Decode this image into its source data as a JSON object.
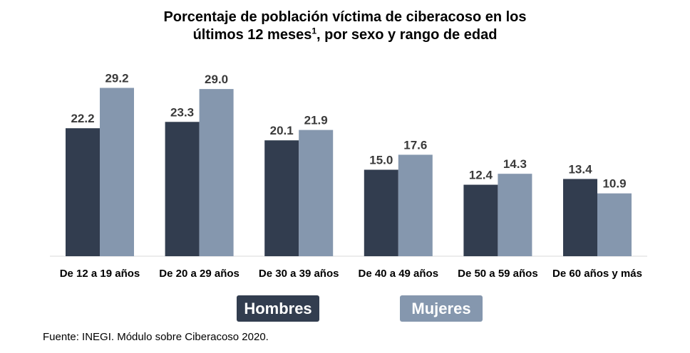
{
  "title_line1": "Porcentaje de población víctima de ciberacoso en los",
  "title_line2_pre": "últimos 12 meses",
  "title_sup": "1",
  "title_line2_post": ", por sexo y rango de edad",
  "source": "Fuente: INEGI. Módulo sobre Ciberacoso 2020.",
  "chart_data": {
    "type": "bar",
    "categories": [
      "De 12 a 19 años",
      "De 20 a 29 años",
      "De 30 a 39 años",
      "De 40 a 49 años",
      "De 50 a 59 años",
      "De 60 años y más"
    ],
    "series": [
      {
        "name": "Hombres",
        "color": "#323d4f",
        "values": [
          22.2,
          23.3,
          20.1,
          15.0,
          12.4,
          13.4
        ]
      },
      {
        "name": "Mujeres",
        "color": "#8597ae",
        "values": [
          29.2,
          29.0,
          21.9,
          17.6,
          14.3,
          10.9
        ]
      }
    ],
    "ylim": [
      0,
      30
    ],
    "grid": false,
    "legend_position": "bottom"
  }
}
